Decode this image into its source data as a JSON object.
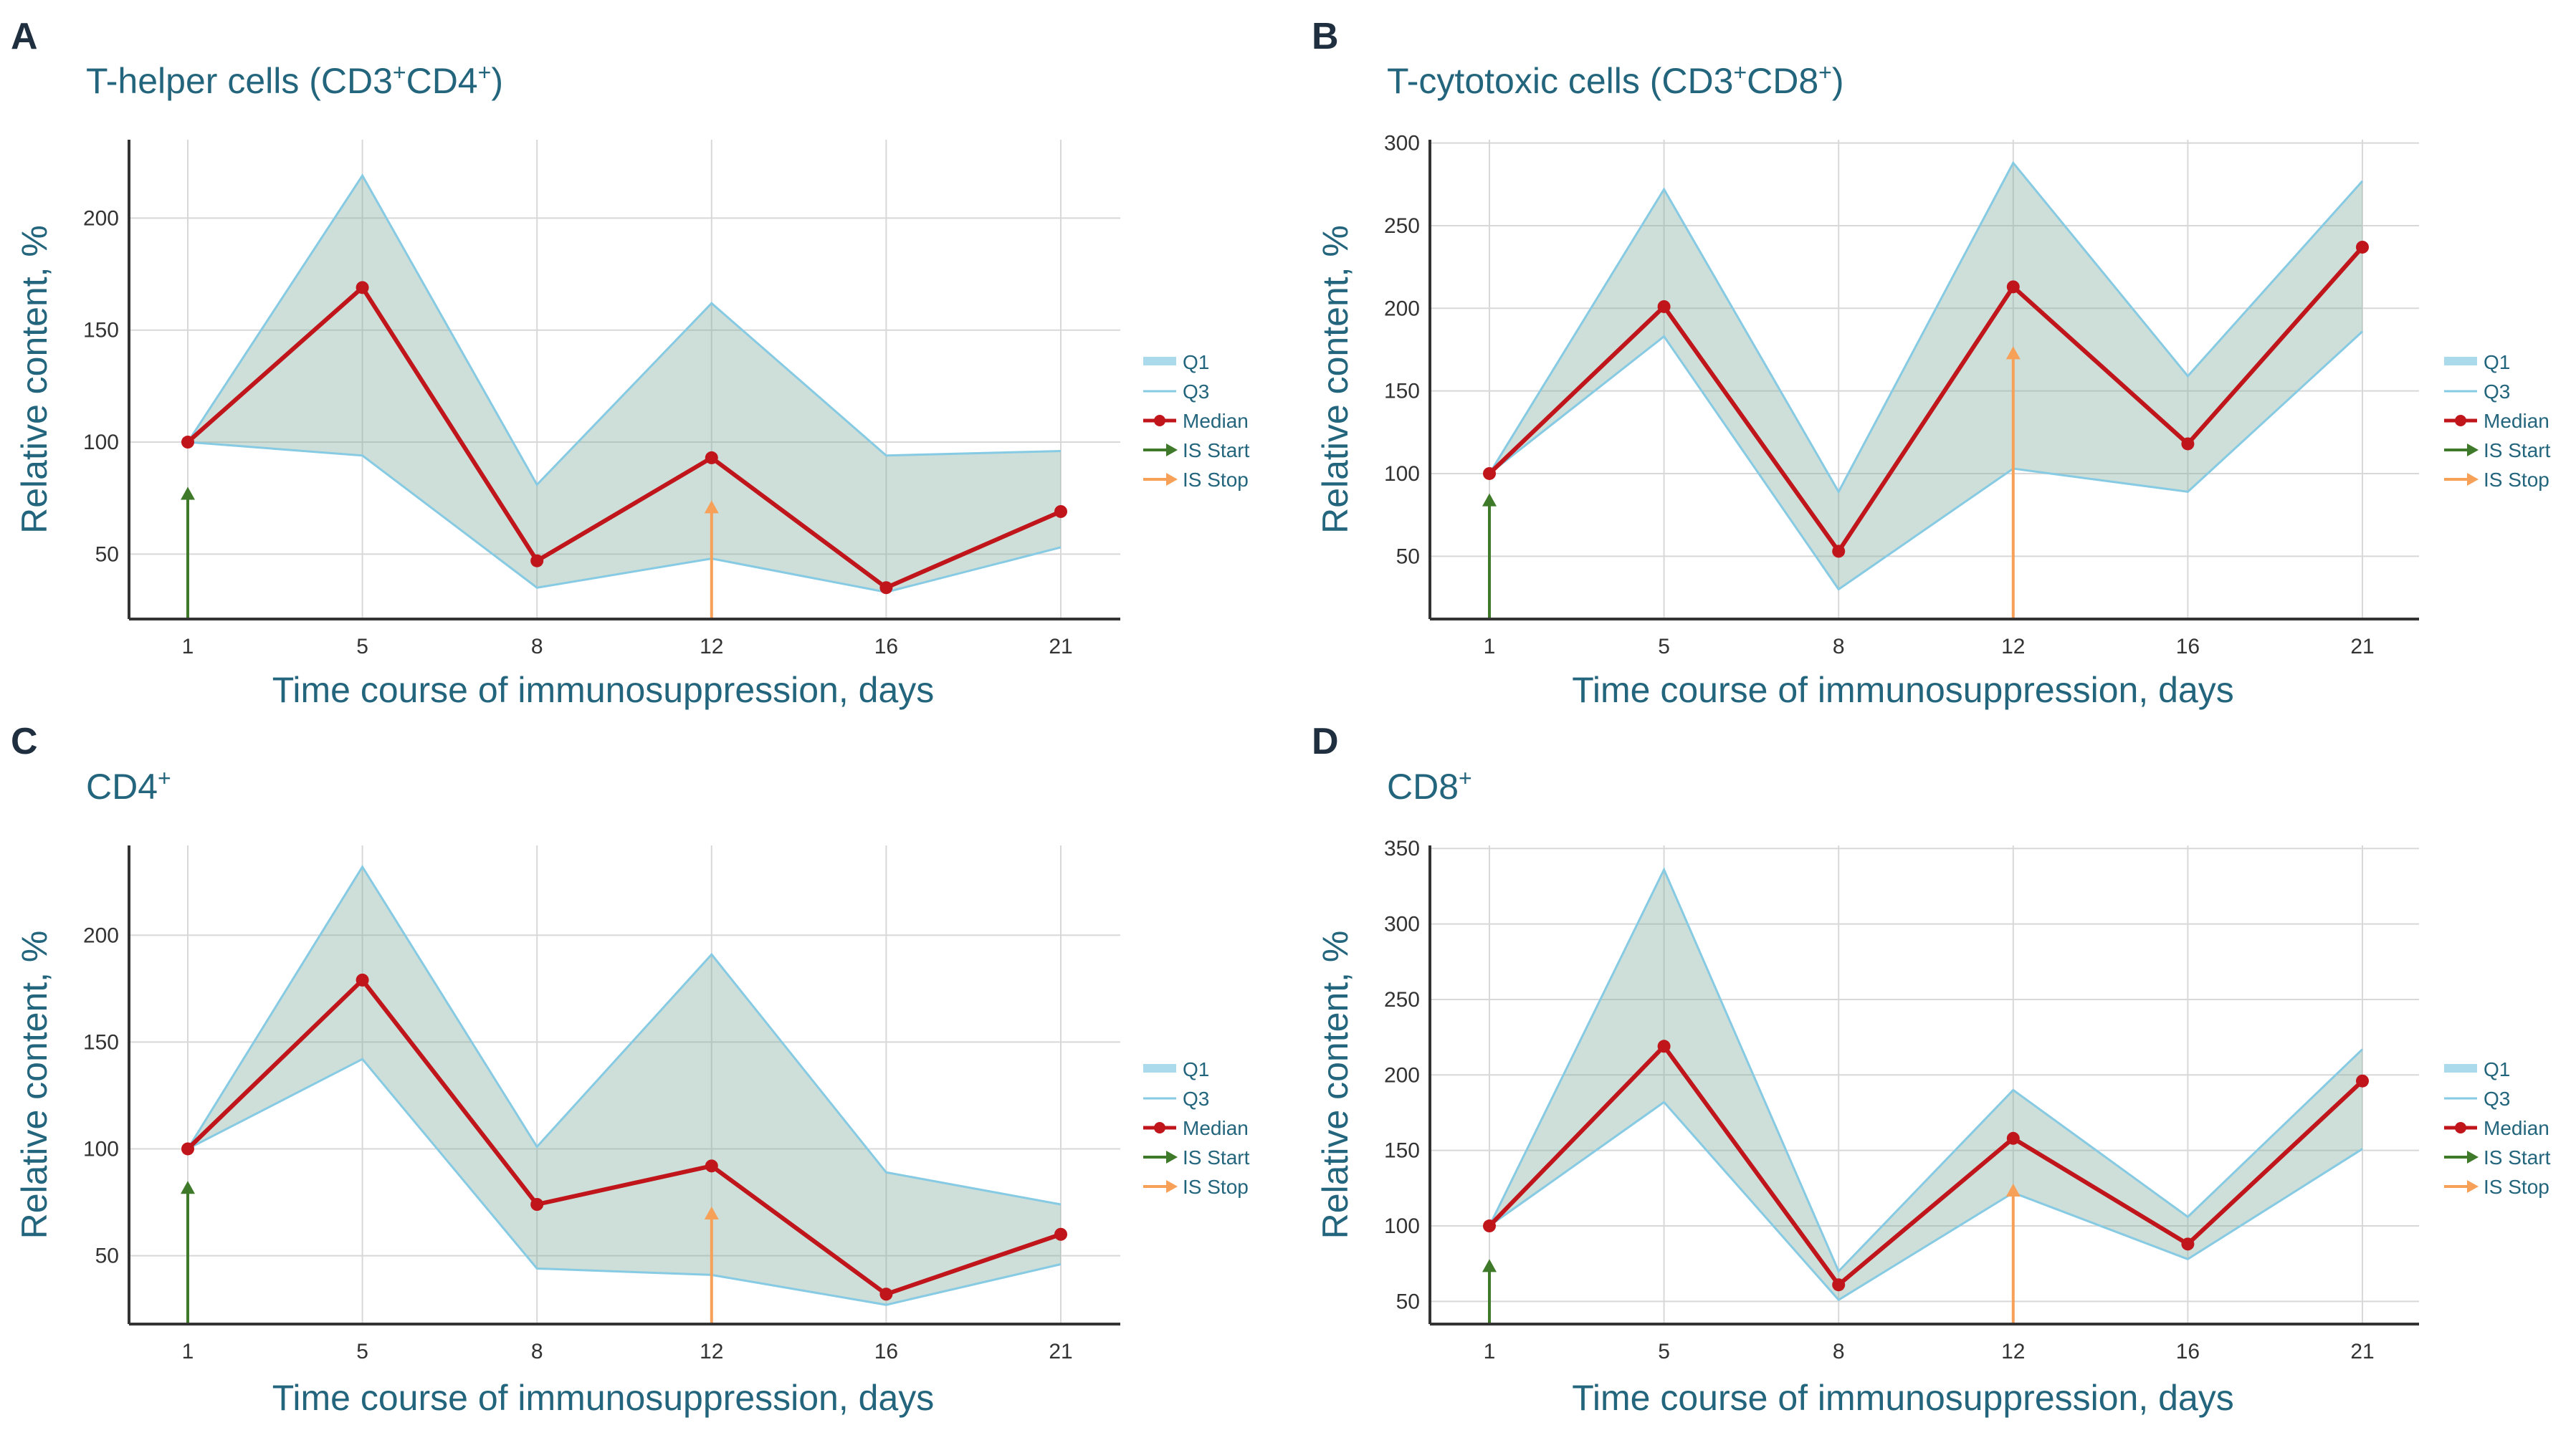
{
  "colors": {
    "band_fill": "#7fa79a",
    "band_stroke": "#86cbe3",
    "median": "#c0151b",
    "is_start": "#3e7a2a",
    "is_stop": "#f7a058",
    "grid": "#d8d8d8",
    "axis": "#333333",
    "label": "#23657c"
  },
  "chart_data": [
    {
      "panel": "A",
      "type": "area",
      "title": "T-helper cells (CD3+CD4+)",
      "title_parts": [
        {
          "text": "T-helper cells (CD3"
        },
        {
          "text": "+",
          "sup": true
        },
        {
          "text": "CD4"
        },
        {
          "text": "+",
          "sup": true
        },
        {
          "text": ")"
        }
      ],
      "xlabel": "Time course of immunosuppression, days",
      "ylabel": "Relative content, %",
      "x": [
        1,
        5,
        8,
        12,
        16,
        21
      ],
      "x_tick_labels": [
        "1",
        "5",
        "8",
        "12",
        "16",
        "21"
      ],
      "y_ticks": [
        50,
        100,
        150,
        200
      ],
      "ylim": [
        21,
        235
      ],
      "series": [
        {
          "name": "Q1",
          "values": [
            100,
            94,
            35,
            48,
            33,
            53
          ]
        },
        {
          "name": "Q3",
          "values": [
            100,
            219,
            81,
            162,
            94,
            96
          ]
        },
        {
          "name": "Median",
          "values": [
            100,
            169,
            47,
            93,
            35,
            69
          ]
        }
      ],
      "arrows": [
        {
          "name": "IS Start",
          "x": 1,
          "y_to": 80
        },
        {
          "name": "IS Stop",
          "x": 12,
          "y_to": 74
        }
      ],
      "legend": [
        "Q1",
        "Q3",
        "Median",
        "IS Start",
        "IS Stop"
      ]
    },
    {
      "panel": "B",
      "type": "area",
      "title": "T-cytotoxic cells (CD3+CD8+)",
      "title_parts": [
        {
          "text": "T-cytotoxic cells (CD3"
        },
        {
          "text": "+",
          "sup": true
        },
        {
          "text": "CD8"
        },
        {
          "text": "+",
          "sup": true
        },
        {
          "text": ")"
        }
      ],
      "xlabel": "Time course of immunosuppression, days",
      "ylabel": "Relative content, %",
      "x": [
        1,
        5,
        8,
        12,
        16,
        21
      ],
      "x_tick_labels": [
        "1",
        "5",
        "8",
        "12",
        "16",
        "21"
      ],
      "y_ticks": [
        50,
        100,
        150,
        200,
        250,
        300
      ],
      "ylim": [
        12,
        302
      ],
      "series": [
        {
          "name": "Q1",
          "values": [
            100,
            183,
            30,
            103,
            89,
            186
          ]
        },
        {
          "name": "Q3",
          "values": [
            100,
            272,
            89,
            288,
            159,
            277
          ]
        },
        {
          "name": "Median",
          "values": [
            100,
            201,
            53,
            213,
            118,
            237
          ]
        }
      ],
      "arrows": [
        {
          "name": "IS Start",
          "x": 1,
          "y_to": 88
        },
        {
          "name": "IS Stop",
          "x": 12,
          "y_to": 177
        }
      ],
      "legend": [
        "Q1",
        "Q3",
        "Median",
        "IS Start",
        "IS Stop"
      ]
    },
    {
      "panel": "C",
      "type": "area",
      "title": "CD4+",
      "title_parts": [
        {
          "text": "CD4"
        },
        {
          "text": "+",
          "sup": true
        }
      ],
      "xlabel": "Time course of immunosuppression, days",
      "ylabel": "Relative content, %",
      "x": [
        1,
        5,
        8,
        12,
        16,
        21
      ],
      "x_tick_labels": [
        "1",
        "5",
        "8",
        "12",
        "16",
        "21"
      ],
      "y_ticks": [
        50,
        100,
        150,
        200
      ],
      "ylim": [
        18,
        242
      ],
      "series": [
        {
          "name": "Q1",
          "values": [
            100,
            142,
            44,
            41,
            27,
            46
          ]
        },
        {
          "name": "Q3",
          "values": [
            100,
            232,
            101,
            191,
            89,
            74
          ]
        },
        {
          "name": "Median",
          "values": [
            100,
            179,
            74,
            92,
            32,
            60
          ]
        }
      ],
      "arrows": [
        {
          "name": "IS Start",
          "x": 1,
          "y_to": 85
        },
        {
          "name": "IS Stop",
          "x": 12,
          "y_to": 73
        }
      ],
      "legend": [
        "Q1",
        "Q3",
        "Median",
        "IS Start",
        "IS Stop"
      ]
    },
    {
      "panel": "D",
      "type": "area",
      "title": "CD8+",
      "title_parts": [
        {
          "text": "CD8"
        },
        {
          "text": "+",
          "sup": true
        }
      ],
      "xlabel": "Time course of immunosuppression, days",
      "ylabel": "Relative content, %",
      "x": [
        1,
        5,
        8,
        12,
        16,
        21
      ],
      "x_tick_labels": [
        "1",
        "5",
        "8",
        "12",
        "16",
        "21"
      ],
      "y_ticks": [
        50,
        100,
        150,
        200,
        250,
        300,
        350
      ],
      "ylim": [
        35,
        352
      ],
      "series": [
        {
          "name": "Q1",
          "values": [
            100,
            182,
            51,
            122,
            78,
            151
          ]
        },
        {
          "name": "Q3",
          "values": [
            100,
            336,
            70,
            190,
            106,
            217
          ]
        },
        {
          "name": "Median",
          "values": [
            100,
            219,
            61,
            158,
            88,
            196
          ]
        }
      ],
      "arrows": [
        {
          "name": "IS Start",
          "x": 1,
          "y_to": 78
        },
        {
          "name": "IS Stop",
          "x": 12,
          "y_to": 128
        }
      ],
      "legend": [
        "Q1",
        "Q3",
        "Median",
        "IS Start",
        "IS Stop"
      ]
    }
  ]
}
